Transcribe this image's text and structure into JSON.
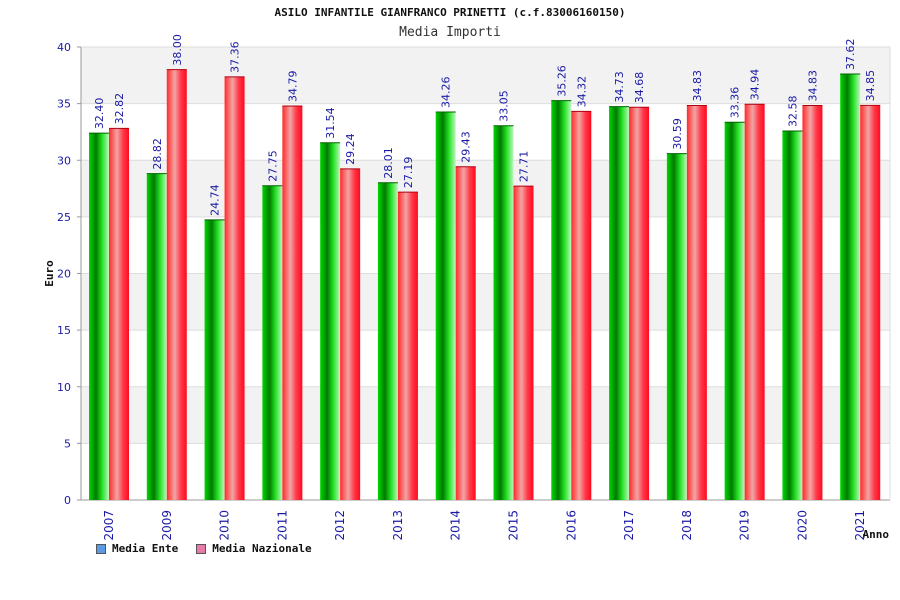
{
  "header": {
    "title": "ASILO INFANTILE GIANFRANCO PRINETTI (c.f.83006160150)",
    "subtitle": "Media Importi"
  },
  "legend": {
    "ente_label": "Media Ente",
    "nazionale_label": "Media Nazionale",
    "ente_color": "#5b9be6",
    "nazionale_color": "#e87aa9"
  },
  "chart_data": {
    "type": "bar",
    "title": "ASILO INFANTILE GIANFRANCO PRINETTI (c.f.83006160150)",
    "subtitle": "Media Importi",
    "xlabel": "Anno",
    "ylabel": "Euro",
    "ylim": [
      0,
      40
    ],
    "yticks": [
      0,
      5,
      10,
      15,
      20,
      25,
      30,
      35,
      40
    ],
    "grid": true,
    "legend_position": "bottom-left",
    "categories": [
      "2007",
      "2009",
      "2010",
      "2011",
      "2012",
      "2013",
      "2014",
      "2015",
      "2016",
      "2017",
      "2018",
      "2019",
      "2020",
      "2021"
    ],
    "series": [
      {
        "name": "Media Ente",
        "color": "#00c000",
        "values": [
          32.4,
          28.82,
          24.74,
          27.75,
          31.54,
          28.01,
          34.26,
          33.05,
          35.26,
          34.73,
          30.59,
          33.36,
          32.58,
          37.62
        ],
        "labels": [
          "32.40",
          "28.82",
          "24.74",
          "27.75",
          "31.54",
          "28.01",
          "34.26",
          "33.05",
          "35.26",
          "34.73",
          "30.59",
          "33.36",
          "32.58",
          "37.62"
        ]
      },
      {
        "name": "Media Nazionale",
        "color": "#ff1a2e",
        "values": [
          32.82,
          38.0,
          37.36,
          34.79,
          29.24,
          27.19,
          29.43,
          27.71,
          34.32,
          34.68,
          34.83,
          34.94,
          34.83,
          34.85
        ],
        "labels": [
          "32.82",
          "38.00",
          "37.36",
          "34.79",
          "29.24",
          "27.19",
          "29.43",
          "27.71",
          "34.32",
          "34.68",
          "34.83",
          "34.94",
          "34.83",
          "34.85"
        ]
      }
    ]
  }
}
